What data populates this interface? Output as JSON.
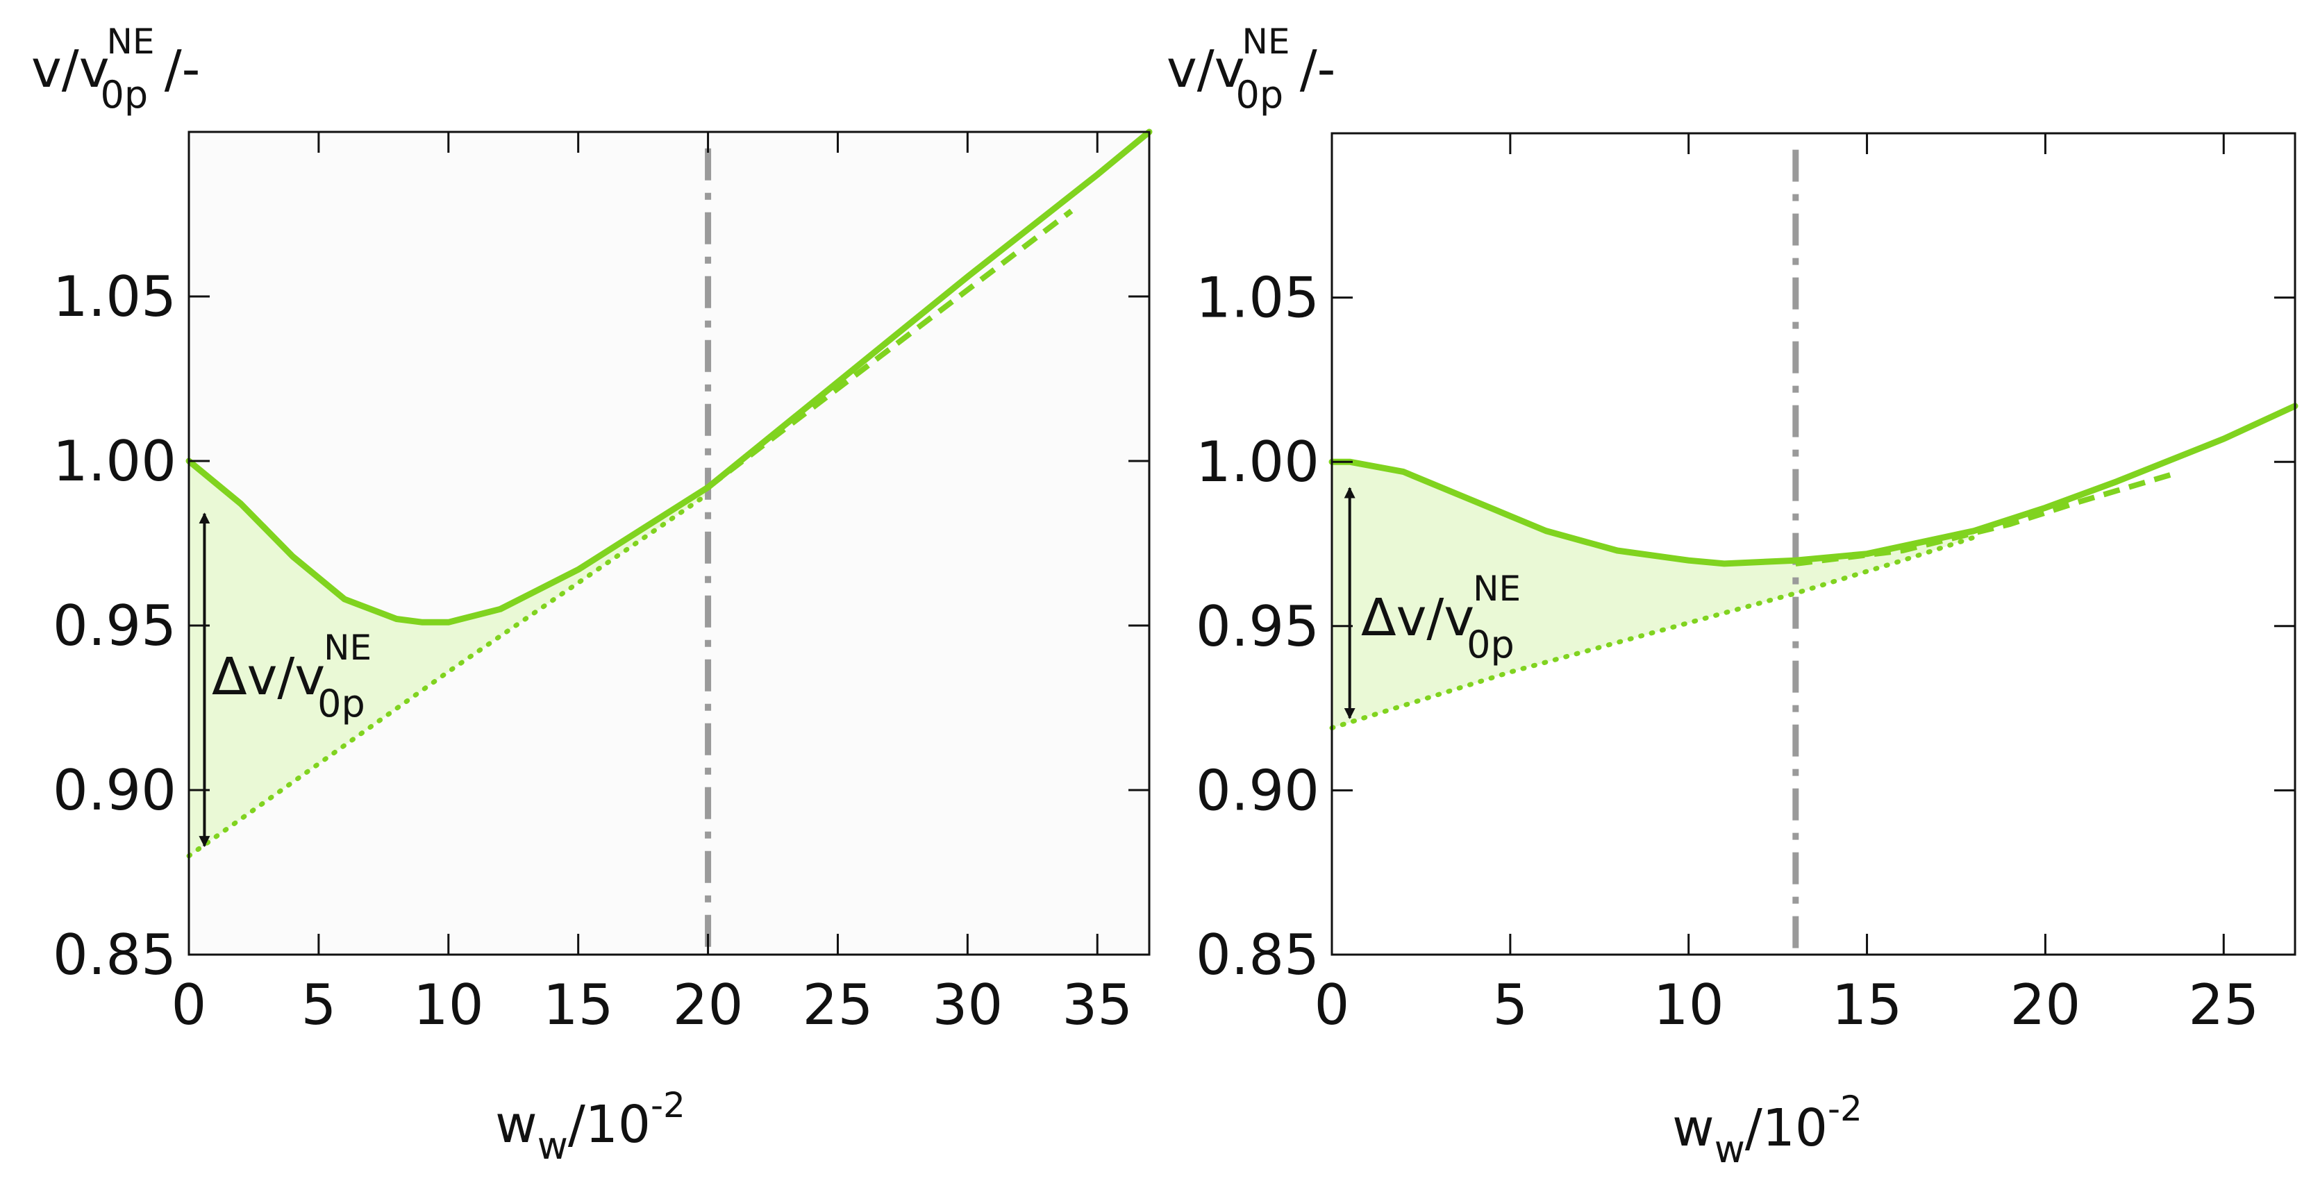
{
  "colors": {
    "curve": "#80d31f",
    "fill": "#e8f8d2",
    "marker": "#9a9a9a",
    "axis": "#111111",
    "background_left": "#fbfbfb",
    "background_right": "#ffffff"
  },
  "chart_data": [
    {
      "type": "line",
      "title": "",
      "ylabel": {
        "base": "v/v",
        "sub": "0p",
        "sup": "NE",
        "suffix": " /-"
      },
      "xlabel": {
        "base": "w",
        "sub": "w",
        "rest": "/10",
        "sup": "-2"
      },
      "xlim": [
        0,
        37
      ],
      "ylim": [
        0.85,
        1.1
      ],
      "xticks": [
        0,
        5,
        10,
        15,
        20,
        25,
        30,
        35
      ],
      "xtick_labels": [
        "0",
        "5",
        "10",
        "15",
        "20",
        "25",
        "30",
        "35"
      ],
      "yticks": [
        0.85,
        0.9,
        0.95,
        1.0,
        1.05
      ],
      "ytick_labels": [
        "0.85",
        "0.90",
        "0.95",
        "1.00",
        "1.05"
      ],
      "vline_x": 20,
      "delta_label": {
        "base": "Δv/v",
        "sub": "0p",
        "sup": "NE"
      },
      "delta_arrow": {
        "x": 0.6,
        "y_top": 0.984,
        "y_bottom": 0.883
      },
      "series": [
        {
          "name": "solid",
          "style": "solid",
          "x": [
            0,
            2,
            4,
            6,
            8,
            9,
            10,
            12,
            15,
            20,
            25,
            30,
            35,
            37
          ],
          "y": [
            1.0,
            0.987,
            0.971,
            0.958,
            0.952,
            0.951,
            0.951,
            0.955,
            0.967,
            0.992,
            1.024,
            1.056,
            1.087,
            1.1
          ]
        },
        {
          "name": "dashed",
          "style": "dashed",
          "x": [
            20,
            25,
            30,
            34
          ],
          "y": [
            0.992,
            1.022,
            1.052,
            1.076
          ]
        },
        {
          "name": "dotted",
          "style": "dotted",
          "x": [
            0,
            5,
            10,
            15,
            20
          ],
          "y": [
            0.88,
            0.908,
            0.936,
            0.963,
            0.99
          ]
        }
      ]
    },
    {
      "type": "line",
      "title": "",
      "ylabel": {
        "base": "v/v",
        "sub": "0p",
        "sup": "NE",
        "suffix": " /-"
      },
      "xlabel": {
        "base": "w",
        "sub": "w",
        "rest": "/10",
        "sup": "-2"
      },
      "xlim": [
        0,
        27
      ],
      "ylim": [
        0.85,
        1.1
      ],
      "xticks": [
        0,
        5,
        10,
        15,
        20,
        25
      ],
      "xtick_labels": [
        "0",
        "5",
        "10",
        "15",
        "20",
        "25"
      ],
      "yticks": [
        0.85,
        0.9,
        0.95,
        1.0,
        1.05
      ],
      "ytick_labels": [
        "0.85",
        "0.90",
        "0.95",
        "1.00",
        "1.05"
      ],
      "vline_x": 13,
      "delta_label": {
        "base": "Δv/v",
        "sub": "0p",
        "sup": "NE"
      },
      "delta_arrow": {
        "x": 0.5,
        "y_top": 0.992,
        "y_bottom": 0.922
      },
      "series": [
        {
          "name": "solid",
          "style": "solid",
          "x": [
            0,
            0.5,
            2,
            4,
            6,
            8,
            10,
            11,
            13,
            15,
            18,
            20,
            22,
            25,
            27
          ],
          "y": [
            1.0,
            1.0,
            0.997,
            0.988,
            0.979,
            0.973,
            0.97,
            0.969,
            0.97,
            0.972,
            0.979,
            0.986,
            0.994,
            1.007,
            1.017
          ]
        },
        {
          "name": "dashed",
          "style": "dashed",
          "x": [
            13,
            16,
            19,
            21,
            23.5
          ],
          "y": [
            0.969,
            0.973,
            0.981,
            0.988,
            0.996
          ]
        },
        {
          "name": "dotted",
          "style": "dotted",
          "x": [
            0,
            5,
            10,
            13,
            16,
            18
          ],
          "y": [
            0.919,
            0.936,
            0.951,
            0.96,
            0.97,
            0.977
          ]
        }
      ]
    }
  ]
}
